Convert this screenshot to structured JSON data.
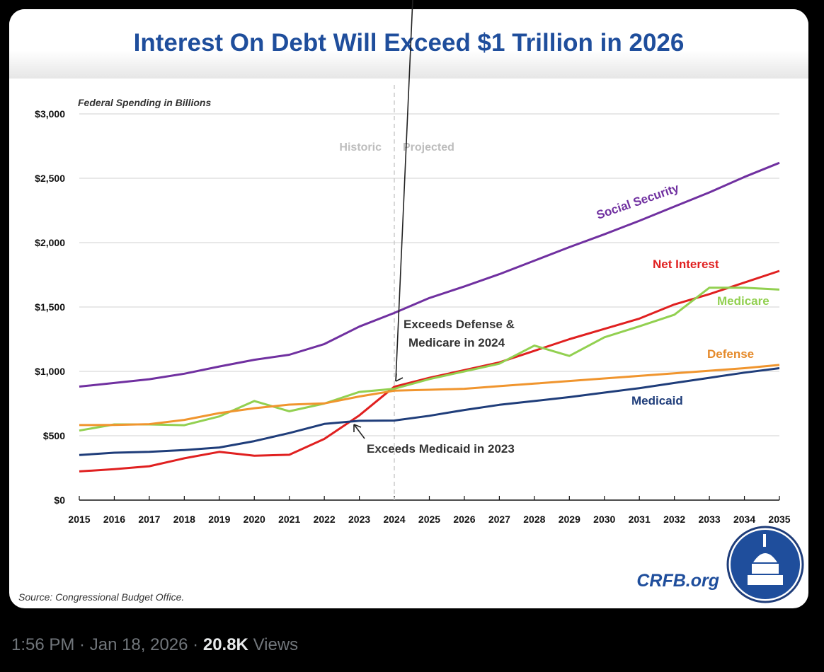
{
  "chart_data": {
    "type": "line",
    "title": "Interest On Debt Will Exceed $1 Trillion in 2026",
    "ylabel": "Federal Spending in Billions",
    "xlabel": "",
    "ylim": [
      0,
      3000
    ],
    "yticks": [
      0,
      500,
      1000,
      1500,
      2000,
      2500,
      3000
    ],
    "ytick_labels": [
      "$0",
      "$500",
      "$1,000",
      "$1,500",
      "$2,000",
      "$2,500",
      "$3,000"
    ],
    "x": [
      2015,
      2016,
      2017,
      2018,
      2019,
      2020,
      2021,
      2022,
      2023,
      2024,
      2025,
      2026,
      2027,
      2028,
      2029,
      2030,
      2031,
      2032,
      2033,
      2034,
      2035
    ],
    "grid": true,
    "divider_year": 2024,
    "divider_labels": [
      "Historic",
      "Projected"
    ],
    "series": [
      {
        "name": "Social Security",
        "color": "#7030a0",
        "values": [
          882,
          910,
          939,
          982,
          1038,
          1090,
          1129,
          1212,
          1348,
          1454,
          1570,
          1660,
          1755,
          1860,
          1965,
          2065,
          2170,
          2280,
          2390,
          2510,
          2620
        ]
      },
      {
        "name": "Net Interest",
        "color": "#e02020",
        "values": [
          223,
          240,
          263,
          325,
          375,
          345,
          352,
          475,
          658,
          881,
          950,
          1010,
          1070,
          1160,
          1250,
          1330,
          1410,
          1520,
          1600,
          1690,
          1780
        ]
      },
      {
        "name": "Medicare",
        "color": "#92d050",
        "values": [
          540,
          588,
          588,
          582,
          650,
          770,
          690,
          750,
          840,
          865,
          940,
          1000,
          1060,
          1200,
          1120,
          1265,
          1350,
          1440,
          1650,
          1650,
          1635
        ]
      },
      {
        "name": "Defense",
        "color": "#f0952e",
        "values": [
          583,
          584,
          590,
          623,
          676,
          714,
          742,
          751,
          805,
          850,
          857,
          865,
          885,
          905,
          925,
          945,
          965,
          985,
          1005,
          1025,
          1050
        ]
      },
      {
        "name": "Medicaid",
        "color": "#1f3d7a",
        "values": [
          350,
          368,
          375,
          389,
          409,
          458,
          521,
          592,
          616,
          618,
          655,
          700,
          740,
          770,
          800,
          835,
          870,
          910,
          950,
          990,
          1025
        ]
      }
    ],
    "annotations": [
      "Exceeds Defense &",
      "Medicare in 2024",
      "Exceeds Medicaid in 2023"
    ],
    "source": "Source: Congressional Budget Office.",
    "brand": "CRFB.org"
  },
  "tweet": {
    "time": "1:56 PM",
    "date": "Jan 18, 2026",
    "views_count": "20.8K",
    "views_label": "Views"
  }
}
